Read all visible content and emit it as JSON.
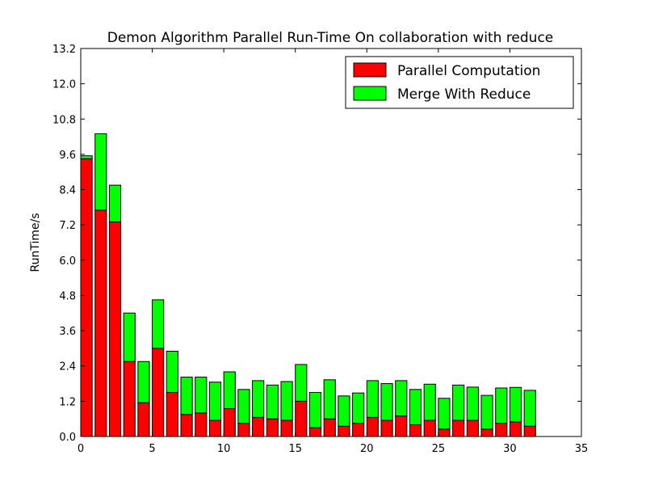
{
  "chart_data": {
    "type": "bar",
    "stacked": true,
    "title": "Demon Algorithm Parallel Run-Time On collaboration with reduce",
    "xlabel": "",
    "ylabel": "RunTime/s",
    "xlim": [
      0,
      35
    ],
    "ylim": [
      0,
      13.2
    ],
    "x_ticks": [
      "0",
      "5",
      "10",
      "15",
      "20",
      "25",
      "30",
      "35"
    ],
    "y_ticks": [
      "0.0",
      "1.2",
      "2.4",
      "3.6",
      "4.8",
      "6.0",
      "7.2",
      "8.4",
      "9.6",
      "10.8",
      "12.0",
      "13.2"
    ],
    "x": [
      0,
      1,
      2,
      3,
      4,
      5,
      6,
      7,
      8,
      9,
      10,
      11,
      12,
      13,
      14,
      15,
      16,
      17,
      18,
      19,
      20,
      21,
      22,
      23,
      24,
      25,
      26,
      27,
      28,
      29,
      30,
      31
    ],
    "legend_position": "top-right",
    "colors": {
      "parallel": "#ff0000",
      "merge": "#00ff00"
    },
    "series": [
      {
        "name": "Parallel Computation",
        "values": [
          9.45,
          7.7,
          7.3,
          2.55,
          1.15,
          3.0,
          1.5,
          0.75,
          0.8,
          0.55,
          0.95,
          0.45,
          0.65,
          0.6,
          0.55,
          1.2,
          0.3,
          0.6,
          0.35,
          0.45,
          0.65,
          0.55,
          0.7,
          0.4,
          0.55,
          0.25,
          0.55,
          0.55,
          0.25,
          0.45,
          0.5,
          0.35
        ]
      },
      {
        "name": "Merge With Reduce",
        "values": [
          0.1,
          2.6,
          1.25,
          1.65,
          1.4,
          1.65,
          1.4,
          1.27,
          1.22,
          1.3,
          1.25,
          1.15,
          1.25,
          1.15,
          1.32,
          1.25,
          1.2,
          1.33,
          1.03,
          1.03,
          1.25,
          1.25,
          1.2,
          1.2,
          1.23,
          1.05,
          1.2,
          1.13,
          1.15,
          1.2,
          1.17,
          1.22
        ]
      }
    ]
  }
}
